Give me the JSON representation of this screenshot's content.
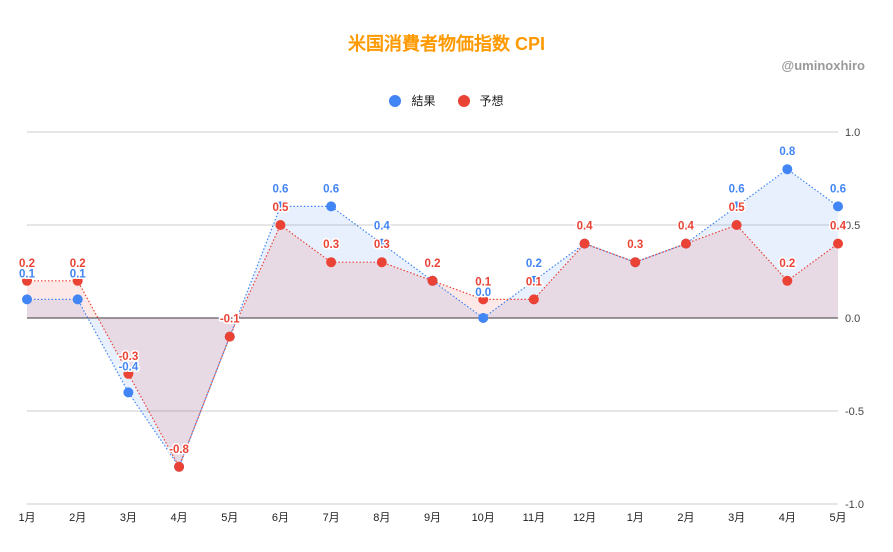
{
  "chart_data": {
    "type": "area",
    "title": "米国消費者物価指数 CPI",
    "credit": "@uminoxhiro",
    "categories": [
      "1月",
      "2月",
      "3月",
      "4月",
      "5月",
      "6月",
      "7月",
      "8月",
      "9月",
      "10月",
      "11月",
      "12月",
      "1月",
      "2月",
      "3月",
      "4月",
      "5月"
    ],
    "series": [
      {
        "name": "結果",
        "color": "#4285f4",
        "values": [
          0.1,
          0.1,
          -0.4,
          -0.8,
          -0.1,
          0.6,
          0.6,
          0.4,
          0.2,
          0.0,
          0.2,
          0.4,
          0.3,
          0.4,
          0.6,
          0.8,
          0.6
        ]
      },
      {
        "name": "予想",
        "color": "#ea4335",
        "values": [
          0.2,
          0.2,
          -0.3,
          -0.8,
          -0.1,
          0.5,
          0.3,
          0.3,
          0.2,
          0.1,
          0.1,
          0.4,
          0.3,
          0.4,
          0.5,
          0.2,
          0.4
        ]
      }
    ],
    "xlabel": "",
    "ylabel": "",
    "ylim": [
      -1.0,
      1.0
    ],
    "yticks": [
      "1.0",
      "0.5",
      "0.0",
      "-0.5",
      "-1.0"
    ],
    "legend_position": "top",
    "grid": true
  },
  "header": {
    "title": "米国消費者物価指数 CPI",
    "credit": "@uminoxhiro"
  },
  "legend": [
    {
      "label": "結果",
      "color": "#4285f4"
    },
    {
      "label": "予想",
      "color": "#ea4335"
    }
  ]
}
